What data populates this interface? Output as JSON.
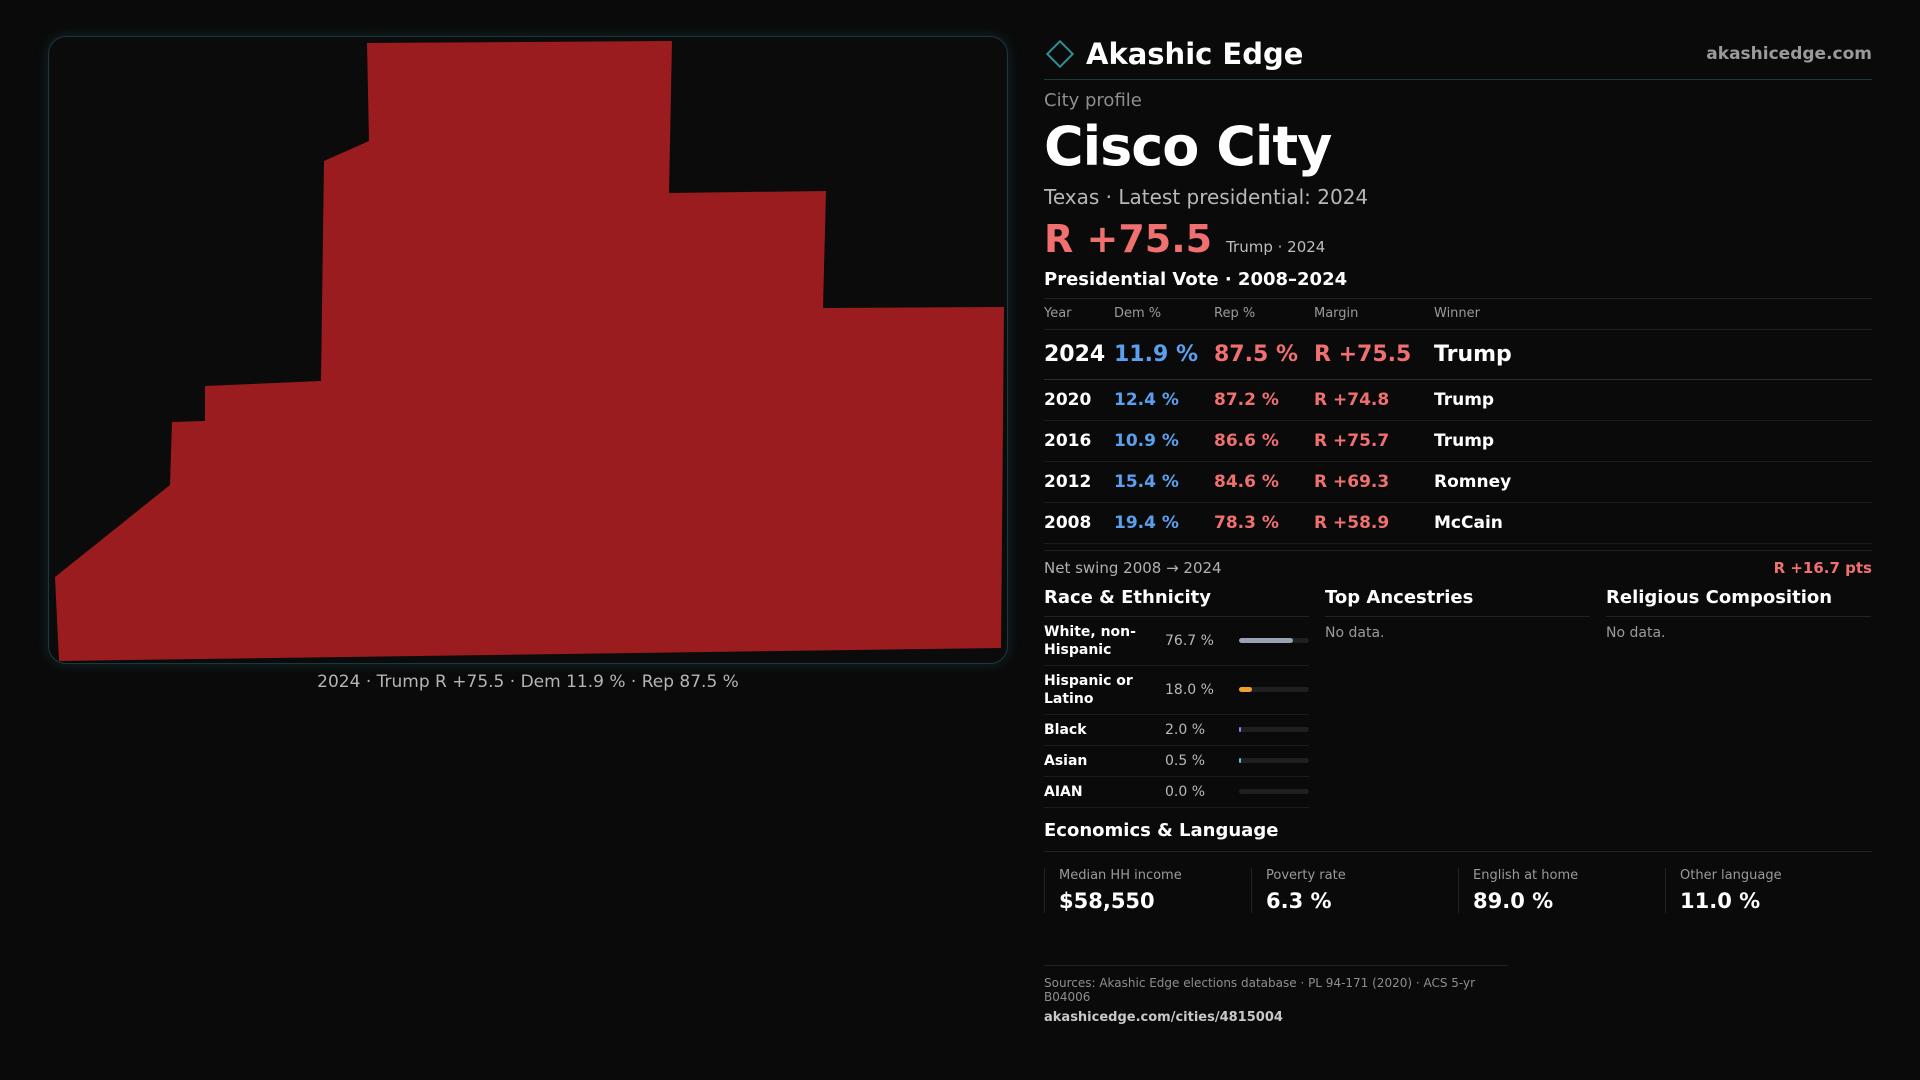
{
  "brand": {
    "name": "Akashic Edge",
    "url": "akashicedge.com"
  },
  "profile": {
    "kicker": "City profile",
    "city": "Cisco City",
    "subline": "Texas · Latest presidential: 2024",
    "headline_margin": "R +75.5",
    "headline_tag": "Trump · 2024"
  },
  "map": {
    "fill_color": "#9b1c1f",
    "caption": "2024 · Trump R +75.5 · Dem 11.9 % · Rep 87.5 %"
  },
  "votes": {
    "title": "Presidential Vote · 2008–2024",
    "headers": {
      "year": "Year",
      "dem": "Dem %",
      "rep": "Rep %",
      "margin": "Margin",
      "winner": "Winner"
    },
    "rows": [
      {
        "year": "2024",
        "dem": "11.9 %",
        "rep": "87.5 %",
        "margin": "R +75.5",
        "winner": "Trump"
      },
      {
        "year": "2020",
        "dem": "12.4 %",
        "rep": "87.2 %",
        "margin": "R +74.8",
        "winner": "Trump"
      },
      {
        "year": "2016",
        "dem": "10.9 %",
        "rep": "86.6 %",
        "margin": "R +75.7",
        "winner": "Trump"
      },
      {
        "year": "2012",
        "dem": "15.4 %",
        "rep": "84.6 %",
        "margin": "R +69.3",
        "winner": "Romney"
      },
      {
        "year": "2008",
        "dem": "19.4 %",
        "rep": "78.3 %",
        "margin": "R +58.9",
        "winner": "McCain"
      }
    ],
    "swing_label": "Net swing 2008 → 2024",
    "swing_value": "R +16.7 pts"
  },
  "race": {
    "title": "Race & Ethnicity",
    "rows": [
      {
        "label": "White, non-Hispanic",
        "pct": "76.7 %",
        "share": 0.767,
        "color": "#9aa3b5"
      },
      {
        "label": "Hispanic or Latino",
        "pct": "18.0 %",
        "share": 0.18,
        "color": "#f0a030"
      },
      {
        "label": "Black",
        "pct": "2.0 %",
        "share": 0.02,
        "color": "#9b7ef0"
      },
      {
        "label": "Asian",
        "pct": "0.5 %",
        "share": 0.005,
        "color": "#5ac8c8"
      },
      {
        "label": "AIAN",
        "pct": "0.0 %",
        "share": 0.0,
        "color": "#8f8f8f"
      }
    ]
  },
  "ancestries": {
    "title": "Top Ancestries",
    "empty": "No data."
  },
  "religion": {
    "title": "Religious Composition",
    "empty": "No data."
  },
  "economics": {
    "title": "Economics & Language",
    "cells": [
      {
        "label": "Median HH income",
        "value": "$58,550"
      },
      {
        "label": "Poverty rate",
        "value": "6.3 %"
      },
      {
        "label": "English at home",
        "value": "89.0 %"
      },
      {
        "label": "Other language",
        "value": "11.0 %"
      }
    ]
  },
  "sources": {
    "text": "Sources: Akashic Edge elections database · PL 94-171 (2020) · ACS 5-yr B04006",
    "url": "akashicedge.com/cities/4815004"
  }
}
